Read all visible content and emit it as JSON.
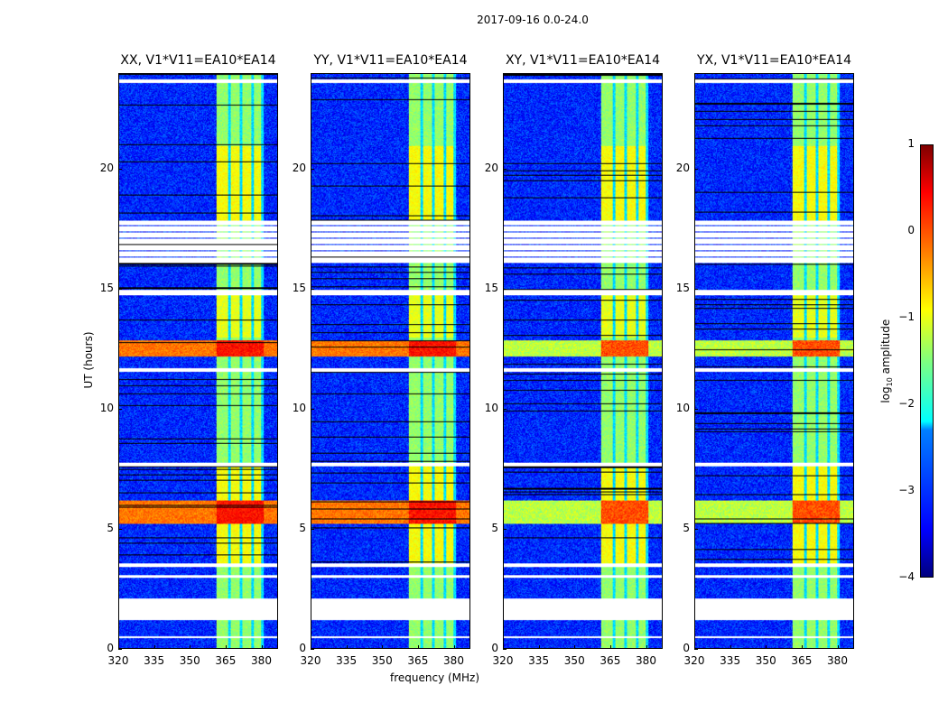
{
  "chart_data": {
    "type": "heatmap",
    "title": "2017-09-16 0.0-24.0",
    "xlabel": "frequency (MHz)",
    "ylabel": "UT (hours)",
    "xlim": [
      320,
      387
    ],
    "ylim": [
      0,
      24
    ],
    "xticks": [
      "320",
      "335",
      "350",
      "365",
      "380"
    ],
    "xtick_values": [
      320,
      335,
      350,
      365,
      380
    ],
    "yticks": [
      "0",
      "5",
      "10",
      "15",
      "20"
    ],
    "ytick_values": [
      0,
      5,
      10,
      15,
      20
    ],
    "panels": [
      {
        "title": "XX, V1*V11=EA10*EA14",
        "strong_rfi": true
      },
      {
        "title": "YY, V1*V11=EA10*EA14",
        "strong_rfi": true
      },
      {
        "title": "XY, V1*V11=EA10*EA14",
        "strong_rfi": false
      },
      {
        "title": "YX, V1*V11=EA10*EA14",
        "strong_rfi": false
      }
    ],
    "colorbar": {
      "label": "log10 amplitude",
      "colormap": "jet",
      "range": [
        -4,
        1
      ],
      "ticks": [
        "1",
        "0",
        "−1",
        "−2",
        "−3",
        "−4"
      ],
      "tick_values": [
        1,
        0,
        -1,
        -2,
        -3,
        -4
      ]
    },
    "features": {
      "background_level": -3.2,
      "band_mhz": [
        361,
        381
      ],
      "band_subchannels_mhz": [
        [
          361,
          366
        ],
        [
          367,
          371
        ],
        [
          372,
          376
        ],
        [
          377,
          380
        ]
      ],
      "band_level": -1.4,
      "rfi_rows_hours": [
        [
          5.2,
          6.2
        ],
        [
          12.2,
          12.9
        ]
      ],
      "flagged_rows_hours": [
        [
          16.1,
          17.9
        ],
        [
          14.75,
          15.0
        ],
        [
          23.65,
          23.8
        ],
        [
          11.55,
          11.7
        ],
        [
          7.6,
          7.75
        ],
        [
          3.4,
          3.55
        ],
        [
          2.95,
          3.05
        ],
        [
          1.2,
          2.1
        ],
        [
          0.45,
          0.5
        ]
      ]
    }
  }
}
